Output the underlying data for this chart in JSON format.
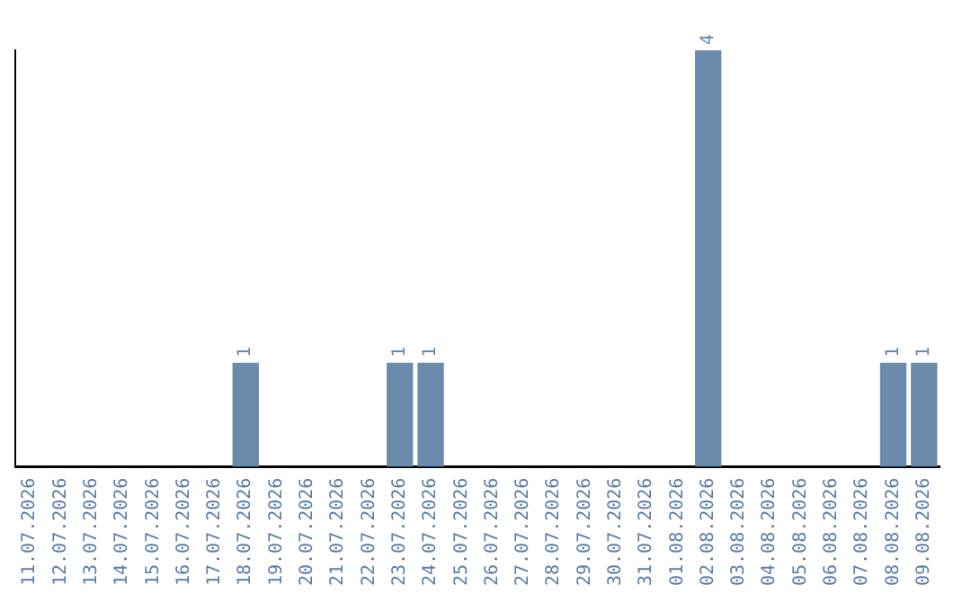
{
  "chart_data": {
    "type": "bar",
    "categories": [
      "11.07.2026",
      "12.07.2026",
      "13.07.2026",
      "14.07.2026",
      "15.07.2026",
      "16.07.2026",
      "17.07.2026",
      "18.07.2026",
      "19.07.2026",
      "20.07.2026",
      "21.07.2026",
      "22.07.2026",
      "23.07.2026",
      "24.07.2026",
      "25.07.2026",
      "26.07.2026",
      "27.07.2026",
      "28.07.2026",
      "29.07.2026",
      "30.07.2026",
      "31.07.2026",
      "01.08.2026",
      "02.08.2026",
      "03.08.2026",
      "04.08.2026",
      "05.08.2026",
      "06.08.2026",
      "07.08.2026",
      "08.08.2026",
      "09.08.2026"
    ],
    "values": [
      0,
      0,
      0,
      0,
      0,
      0,
      0,
      1,
      0,
      0,
      0,
      0,
      1,
      1,
      0,
      0,
      0,
      0,
      0,
      0,
      0,
      0,
      4,
      0,
      0,
      0,
      0,
      0,
      1,
      1
    ],
    "value_labels": [
      null,
      null,
      null,
      null,
      null,
      null,
      null,
      "1",
      null,
      null,
      null,
      null,
      "1",
      "1",
      null,
      null,
      null,
      null,
      null,
      null,
      null,
      null,
      "4",
      null,
      null,
      null,
      null,
      null,
      "1",
      "1"
    ],
    "color": "#6a8bab",
    "grid": false,
    "legend": false
  }
}
